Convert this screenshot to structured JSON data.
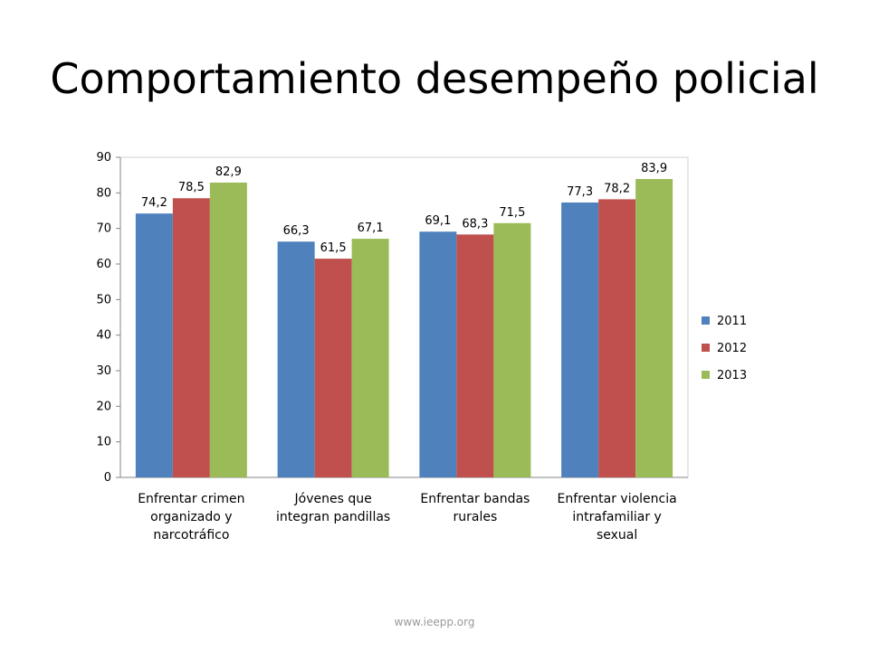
{
  "slide": {
    "title": "Comportamiento desempeño policial",
    "footer": "www.ieepp.org"
  },
  "chart_data": {
    "type": "bar",
    "title": "",
    "xlabel": "",
    "ylabel": "",
    "ylim": [
      0,
      90
    ],
    "yticks": [
      0,
      10,
      20,
      30,
      40,
      50,
      60,
      70,
      80,
      90
    ],
    "grid": false,
    "legend_position": "right",
    "categories": [
      "Enfrentar crimen organizado y narcotráfico",
      "Jóvenes que integran pandillas",
      "Enfrentar bandas rurales",
      "Enfrentar violencia intrafamiliar y sexual"
    ],
    "category_lines": [
      [
        "Enfrentar crimen",
        "organizado y",
        "narcotráfico"
      ],
      [
        "Jóvenes que",
        "integran pandillas"
      ],
      [
        "Enfrentar bandas",
        "rurales"
      ],
      [
        "Enfrentar violencia",
        "intrafamiliar y",
        "sexual"
      ]
    ],
    "series": [
      {
        "name": "2011",
        "color": "#4F81BD",
        "values": [
          74.2,
          66.3,
          69.1,
          77.3
        ],
        "labels": [
          "74,2",
          "66,3",
          "69,1",
          "77,3"
        ]
      },
      {
        "name": "2012",
        "color": "#C0504D",
        "values": [
          78.5,
          61.5,
          68.3,
          78.2
        ],
        "labels": [
          "78,5",
          "61,5",
          "68,3",
          "78,2"
        ]
      },
      {
        "name": "2013",
        "color": "#9BBB59",
        "values": [
          82.9,
          67.1,
          71.5,
          83.9
        ],
        "labels": [
          "82,9",
          "67,1",
          "71,5",
          "83,9"
        ]
      }
    ]
  }
}
